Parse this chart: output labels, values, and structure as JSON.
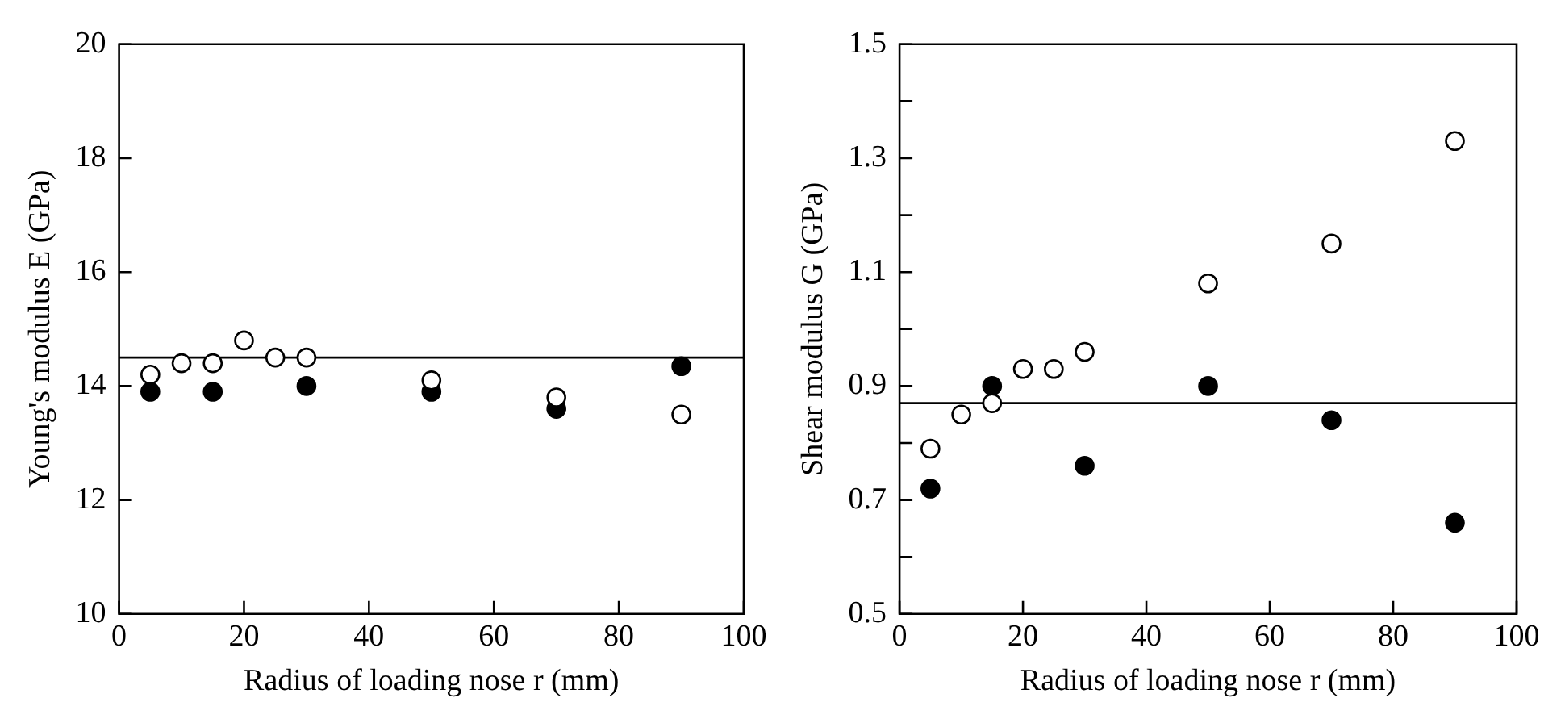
{
  "chart_data": [
    {
      "type": "scatter",
      "xlabel": "Radius of loading nose r (mm)",
      "ylabel": "Young's modulus E (GPa)",
      "xlim": [
        0,
        100
      ],
      "xticks": [
        0,
        20,
        40,
        60,
        80,
        100
      ],
      "ylim": [
        10,
        20
      ],
      "yticks": [
        10,
        12,
        14,
        16,
        18,
        20
      ],
      "grid": false,
      "legend": false,
      "marker": "circle",
      "series": [
        {
          "color": "#ffffff",
          "x": [
            5,
            10,
            15,
            20,
            25,
            30,
            50,
            70,
            90
          ],
          "values": [
            14.2,
            14.4,
            14.4,
            14.8,
            14.5,
            14.5,
            14.1,
            13.8,
            13.5
          ]
        },
        {
          "color": "#000000",
          "x": [
            5,
            15,
            30,
            50,
            70,
            90
          ],
          "values": [
            13.9,
            13.9,
            14.0,
            13.9,
            13.6,
            14.35
          ]
        }
      ],
      "ref_lines": [
        {
          "axis": "y",
          "value": 14.5,
          "color": "#000000"
        }
      ]
    },
    {
      "type": "scatter",
      "xlabel": "Radius of loading nose r (mm)",
      "ylabel": "Shear modulus G (GPa)",
      "xlim": [
        0,
        100
      ],
      "xticks": [
        0,
        20,
        40,
        60,
        80,
        100
      ],
      "ylim": [
        0.5,
        1.5
      ],
      "yticks": [
        0.5,
        {
          "value": 0.6,
          "label": null
        },
        0.7,
        {
          "value": 0.8,
          "label": null
        },
        0.9,
        {
          "value": 1.0,
          "label": null
        },
        1.1,
        {
          "value": 1.2,
          "label": null
        },
        1.3,
        {
          "value": 1.4,
          "label": null
        },
        1.5
      ],
      "grid": false,
      "legend": false,
      "marker": "circle",
      "series": [
        {
          "color": "#ffffff",
          "x": [
            5,
            10,
            15,
            20,
            25,
            30,
            50,
            70,
            90
          ],
          "values": [
            0.79,
            0.85,
            0.87,
            0.93,
            0.93,
            0.96,
            1.08,
            1.15,
            1.33
          ]
        },
        {
          "color": "#000000",
          "x": [
            5,
            15,
            30,
            50,
            70,
            90
          ],
          "values": [
            0.72,
            0.9,
            0.76,
            0.9,
            0.84,
            0.66
          ]
        }
      ],
      "ref_lines": [
        {
          "axis": "y",
          "value": 0.87,
          "color": "#000000"
        }
      ]
    }
  ]
}
